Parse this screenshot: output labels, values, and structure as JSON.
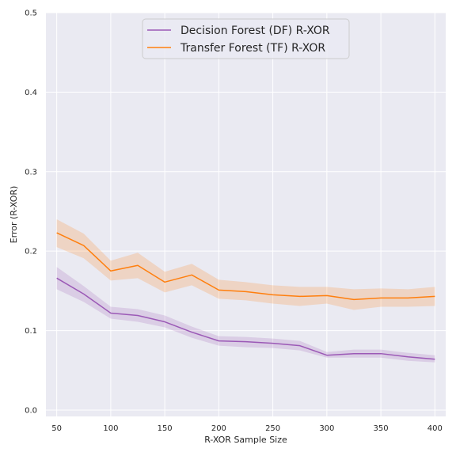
{
  "chart_data": {
    "type": "line",
    "title": "",
    "xlabel": "R-XOR Sample Size",
    "ylabel": "Error (R-XOR)",
    "xlim": [
      40,
      410
    ],
    "ylim": [
      -0.008,
      0.5
    ],
    "xticks": [
      50,
      100,
      150,
      200,
      250,
      300,
      350,
      400
    ],
    "yticks": [
      0.0,
      0.1,
      0.2,
      0.3,
      0.4,
      0.5
    ],
    "ytick_labels": [
      "0.0",
      "0.1",
      "0.2",
      "0.3",
      "0.4",
      "0.5"
    ],
    "grid": true,
    "legend_position": "top-center",
    "x": [
      50,
      75,
      100,
      125,
      150,
      175,
      200,
      225,
      250,
      275,
      300,
      325,
      350,
      375,
      400
    ],
    "series": [
      {
        "name": "Decision Forest (DF) R-XOR",
        "color": "#9b59b6",
        "values": [
          0.166,
          0.146,
          0.122,
          0.119,
          0.111,
          0.098,
          0.087,
          0.086,
          0.084,
          0.081,
          0.069,
          0.071,
          0.071,
          0.067,
          0.064
        ],
        "lower": [
          0.152,
          0.136,
          0.115,
          0.111,
          0.104,
          0.091,
          0.081,
          0.079,
          0.078,
          0.075,
          0.066,
          0.066,
          0.066,
          0.062,
          0.06
        ],
        "upper": [
          0.18,
          0.156,
          0.13,
          0.127,
          0.119,
          0.105,
          0.093,
          0.092,
          0.09,
          0.087,
          0.073,
          0.076,
          0.076,
          0.072,
          0.069
        ]
      },
      {
        "name": "Transfer Forest (TF) R-XOR",
        "color": "#ff7f0e",
        "values": [
          0.223,
          0.207,
          0.175,
          0.182,
          0.161,
          0.17,
          0.151,
          0.149,
          0.145,
          0.143,
          0.144,
          0.139,
          0.141,
          0.141,
          0.143
        ],
        "lower": [
          0.205,
          0.191,
          0.163,
          0.166,
          0.148,
          0.157,
          0.14,
          0.138,
          0.134,
          0.131,
          0.134,
          0.126,
          0.13,
          0.13,
          0.131
        ],
        "upper": [
          0.24,
          0.222,
          0.188,
          0.198,
          0.174,
          0.184,
          0.164,
          0.161,
          0.157,
          0.155,
          0.155,
          0.152,
          0.153,
          0.152,
          0.155
        ]
      }
    ]
  }
}
